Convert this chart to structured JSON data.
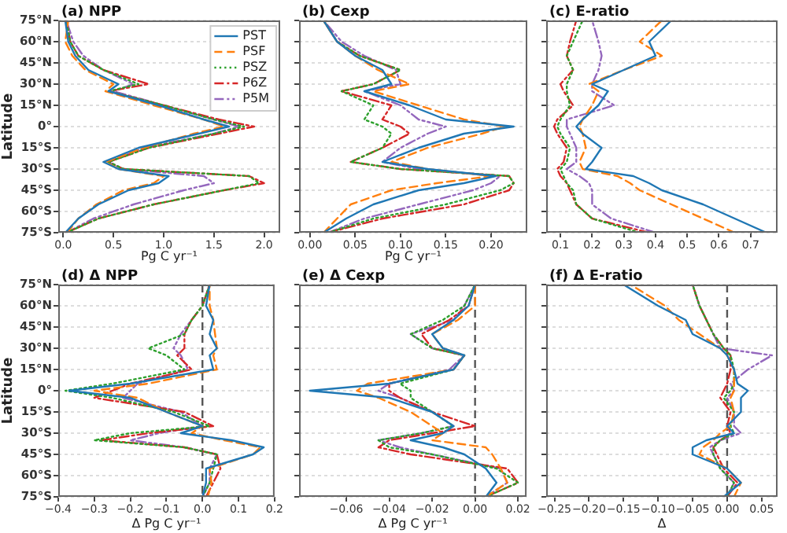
{
  "chart_data": [
    {
      "type": "line",
      "title": "(a) NPP",
      "xlabel": "Pg C yr⁻¹",
      "ylabel": "Latitude",
      "xlim": [
        -0.05,
        2.16
      ],
      "xticks": [
        {
          "value": 0,
          "label": "0.0"
        },
        {
          "value": 0.5,
          "label": "0.5"
        },
        {
          "value": 1,
          "label": "1.0"
        },
        {
          "value": 1.5,
          "label": "1.5"
        },
        {
          "value": 2,
          "label": "2.0"
        }
      ],
      "ylim": [
        -75,
        75
      ],
      "yticks": [
        {
          "value": -75,
          "label": "75°S"
        },
        {
          "value": -60,
          "label": "60°S"
        },
        {
          "value": -45,
          "label": "45°S"
        },
        {
          "value": -30,
          "label": "30°S"
        },
        {
          "value": -15,
          "label": "15°S"
        },
        {
          "value": 0,
          "label": "0°"
        },
        {
          "value": 15,
          "label": "15°N"
        },
        {
          "value": 30,
          "label": "30°N"
        },
        {
          "value": 45,
          "label": "45°N"
        },
        {
          "value": 60,
          "label": "60°N"
        },
        {
          "value": 75,
          "label": "75°N"
        }
      ],
      "grid": "y",
      "legend": "top right",
      "series": [
        {
          "name": "PST",
          "color": "#1f77b4",
          "line_style": "solid",
          "x": [
            0.02,
            0.15,
            0.35,
            0.65,
            0.95,
            1.05,
            0.55,
            0.4,
            0.75,
            1.35,
            1.65,
            1.4,
            0.95,
            0.45,
            0.55,
            0.25,
            0.12,
            0.05,
            0.02
          ],
          "values": [
            -75,
            -65,
            -55,
            -45,
            -40,
            -35,
            -30,
            -25,
            -15,
            -5,
            0,
            5,
            15,
            25,
            30,
            40,
            50,
            60,
            75
          ]
        },
        {
          "name": "PSF",
          "color": "#ff7f0e",
          "line_style": "dashed",
          "x": [
            0.04,
            0.15,
            0.33,
            0.6,
            0.9,
            1.0,
            0.55,
            0.42,
            0.8,
            1.3,
            1.6,
            1.4,
            0.9,
            0.42,
            0.5,
            0.22,
            0.09,
            0.02,
            0.05
          ],
          "values": [
            -75,
            -65,
            -55,
            -45,
            -40,
            -35,
            -30,
            -25,
            -15,
            -5,
            0,
            5,
            15,
            25,
            30,
            40,
            50,
            60,
            75
          ]
        },
        {
          "name": "PSZ",
          "color": "#2ca02c",
          "line_style": "dotted",
          "x": [
            0.03,
            0.35,
            0.9,
            1.6,
            1.95,
            1.85,
            0.6,
            0.45,
            0.85,
            1.5,
            1.8,
            1.5,
            1.0,
            0.45,
            0.75,
            0.4,
            0.15,
            0.07,
            0.03
          ],
          "values": [
            -75,
            -65,
            -55,
            -45,
            -40,
            -35,
            -30,
            -25,
            -15,
            -5,
            0,
            5,
            15,
            25,
            30,
            40,
            50,
            60,
            75
          ]
        },
        {
          "name": "P6Z",
          "color": "#d62728",
          "line_style": "dashdot",
          "x": [
            0.03,
            0.35,
            0.9,
            1.6,
            2.0,
            1.85,
            0.6,
            0.45,
            0.85,
            1.55,
            1.9,
            1.55,
            1.0,
            0.45,
            0.85,
            0.4,
            0.15,
            0.07,
            0.03
          ],
          "values": [
            -75,
            -65,
            -55,
            -45,
            -40,
            -35,
            -30,
            -25,
            -15,
            -5,
            0,
            5,
            15,
            25,
            30,
            40,
            50,
            60,
            75
          ]
        },
        {
          "name": "P5M",
          "color": "#9467bd",
          "line_style": "dashdotdot",
          "x": [
            0.03,
            0.3,
            0.7,
            1.2,
            1.5,
            1.4,
            0.6,
            0.45,
            0.8,
            1.5,
            1.75,
            1.5,
            1.0,
            0.5,
            0.7,
            0.4,
            0.2,
            0.1,
            0.03
          ],
          "values": [
            -75,
            -65,
            -55,
            -45,
            -40,
            -35,
            -30,
            -25,
            -15,
            -5,
            0,
            5,
            15,
            25,
            30,
            40,
            50,
            60,
            75
          ]
        }
      ]
    },
    {
      "type": "line",
      "title": "(b) Cexp",
      "xlabel": "Pg C yr⁻¹",
      "xlim": [
        -0.012,
        0.24
      ],
      "xticks": [
        {
          "value": 0,
          "label": "0.00"
        },
        {
          "value": 0.05,
          "label": "0.05"
        },
        {
          "value": 0.1,
          "label": "0.10"
        },
        {
          "value": 0.15,
          "label": "0.15"
        },
        {
          "value": 0.2,
          "label": "0.20"
        }
      ],
      "ylim": [
        -75,
        75
      ],
      "yticks": [
        {
          "value": -75,
          "label": null
        },
        {
          "value": -60,
          "label": null
        },
        {
          "value": -45,
          "label": null
        },
        {
          "value": -30,
          "label": null
        },
        {
          "value": -15,
          "label": null
        },
        {
          "value": 0,
          "label": null
        },
        {
          "value": 15,
          "label": null
        },
        {
          "value": 30,
          "label": null
        },
        {
          "value": 45,
          "label": null
        },
        {
          "value": 60,
          "label": null
        },
        {
          "value": 75,
          "label": null
        }
      ],
      "grid": "y",
      "tick_labels": "x",
      "series": [
        {
          "color": "#1f77b4",
          "line_style": "solid",
          "x": [
            0.015,
            0.04,
            0.07,
            0.12,
            0.17,
            0.205,
            0.13,
            0.08,
            0.12,
            0.17,
            0.225,
            0.15,
            0.11,
            0.06,
            0.09,
            0.08,
            0.05,
            0.03,
            0.015
          ],
          "values": [
            -75,
            -65,
            -55,
            -45,
            -40,
            -35,
            -30,
            -25,
            -15,
            -5,
            0,
            5,
            15,
            25,
            30,
            40,
            50,
            60,
            75
          ]
        },
        {
          "color": "#ff7f0e",
          "line_style": "dashed",
          "x": [
            0.015,
            0.03,
            0.045,
            0.09,
            0.14,
            0.2,
            0.13,
            0.09,
            0.13,
            0.19,
            0.215,
            0.17,
            0.12,
            0.07,
            0.11,
            0.075,
            0.05,
            0.03,
            0.015
          ],
          "values": [
            -75,
            -65,
            -55,
            -45,
            -40,
            -35,
            -30,
            -25,
            -15,
            -5,
            0,
            5,
            15,
            25,
            30,
            40,
            50,
            60,
            75
          ]
        },
        {
          "color": "#2ca02c",
          "line_style": "dotted",
          "x": [
            0.02,
            0.07,
            0.15,
            0.21,
            0.225,
            0.22,
            0.1,
            0.045,
            0.08,
            0.09,
            0.08,
            0.06,
            0.07,
            0.035,
            0.07,
            0.1,
            0.055,
            0.03,
            0.015
          ],
          "values": [
            -75,
            -65,
            -55,
            -45,
            -40,
            -35,
            -30,
            -25,
            -15,
            -5,
            0,
            5,
            15,
            25,
            30,
            40,
            50,
            60,
            75
          ]
        },
        {
          "color": "#d62728",
          "line_style": "dashdot",
          "x": [
            0.02,
            0.08,
            0.17,
            0.22,
            0.225,
            0.22,
            0.1,
            0.045,
            0.08,
            0.11,
            0.1,
            0.08,
            0.09,
            0.035,
            0.07,
            0.1,
            0.055,
            0.03,
            0.015
          ],
          "values": [
            -75,
            -65,
            -55,
            -45,
            -40,
            -35,
            -30,
            -25,
            -15,
            -5,
            0,
            5,
            15,
            25,
            30,
            40,
            50,
            60,
            75
          ]
        },
        {
          "color": "#9467bd",
          "line_style": "dashdotdot",
          "x": [
            0.02,
            0.06,
            0.12,
            0.18,
            0.2,
            0.21,
            0.12,
            0.08,
            0.1,
            0.13,
            0.15,
            0.12,
            0.1,
            0.06,
            0.1,
            0.095,
            0.06,
            0.035,
            0.015
          ],
          "values": [
            -75,
            -65,
            -55,
            -45,
            -40,
            -35,
            -30,
            -25,
            -15,
            -5,
            0,
            5,
            15,
            25,
            30,
            40,
            50,
            60,
            75
          ]
        }
      ]
    },
    {
      "type": "line",
      "title": "(c) E-ratio",
      "xlim": [
        0.055,
        0.785
      ],
      "xticks": [
        0.1,
        0.2,
        0.3,
        0.4,
        0.5,
        0.6,
        0.7
      ],
      "ylim": [
        -75,
        75
      ],
      "yticks": [
        {
          "value": -75,
          "label": null
        },
        {
          "value": -60,
          "label": null
        },
        {
          "value": -45,
          "label": null
        },
        {
          "value": -30,
          "label": null
        },
        {
          "value": -15,
          "label": null
        },
        {
          "value": 0,
          "label": null
        },
        {
          "value": 15,
          "label": null
        },
        {
          "value": 30,
          "label": null
        },
        {
          "value": 45,
          "label": null
        },
        {
          "value": 60,
          "label": null
        },
        {
          "value": 75,
          "label": null
        }
      ],
      "grid": "y",
      "tick_labels": "x",
      "series": [
        {
          "color": "#1f77b4",
          "line_style": "solid",
          "x": [
            0.75,
            0.65,
            0.55,
            0.42,
            0.38,
            0.33,
            0.18,
            0.2,
            0.23,
            0.17,
            0.15,
            0.17,
            0.22,
            0.25,
            0.2,
            0.3,
            0.4,
            0.38,
            0.45
          ],
          "values": [
            -75,
            -65,
            -55,
            -45,
            -40,
            -35,
            -30,
            -25,
            -15,
            -5,
            0,
            5,
            15,
            25,
            30,
            40,
            50,
            60,
            75
          ]
        },
        {
          "color": "#ff7f0e",
          "line_style": "dashed",
          "x": [
            0.65,
            0.55,
            0.45,
            0.35,
            0.32,
            0.28,
            0.17,
            0.16,
            0.18,
            0.17,
            0.16,
            0.17,
            0.2,
            0.22,
            0.19,
            0.3,
            0.42,
            0.35,
            0.42
          ],
          "values": [
            -75,
            -65,
            -55,
            -45,
            -40,
            -35,
            -30,
            -25,
            -15,
            -5,
            0,
            5,
            15,
            25,
            30,
            40,
            50,
            60,
            75
          ]
        },
        {
          "color": "#2ca02c",
          "line_style": "dotted",
          "x": [
            0.35,
            0.2,
            0.15,
            0.14,
            0.12,
            0.11,
            0.1,
            0.12,
            0.13,
            0.1,
            0.09,
            0.1,
            0.13,
            0.12,
            0.12,
            0.14,
            0.12,
            0.14,
            0.17
          ],
          "values": [
            -75,
            -65,
            -55,
            -45,
            -40,
            -35,
            -30,
            -25,
            -15,
            -5,
            0,
            5,
            15,
            25,
            30,
            40,
            50,
            60,
            75
          ]
        },
        {
          "color": "#d62728",
          "line_style": "dashdot",
          "x": [
            0.38,
            0.2,
            0.15,
            0.13,
            0.12,
            0.1,
            0.09,
            0.11,
            0.12,
            0.09,
            0.08,
            0.09,
            0.14,
            0.11,
            0.1,
            0.14,
            0.12,
            0.13,
            0.15
          ],
          "values": [
            -75,
            -65,
            -55,
            -45,
            -40,
            -35,
            -30,
            -25,
            -15,
            -5,
            0,
            5,
            15,
            25,
            30,
            40,
            50,
            60,
            75
          ]
        },
        {
          "color": "#9467bd",
          "line_style": "dashdotdot",
          "x": [
            0.4,
            0.26,
            0.2,
            0.2,
            0.19,
            0.16,
            0.12,
            0.15,
            0.15,
            0.13,
            0.12,
            0.12,
            0.27,
            0.2,
            0.2,
            0.22,
            0.23,
            0.22,
            0.2
          ],
          "values": [
            -75,
            -65,
            -55,
            -45,
            -40,
            -35,
            -30,
            -25,
            -15,
            -5,
            0,
            5,
            15,
            25,
            30,
            40,
            50,
            60,
            75
          ]
        }
      ]
    },
    {
      "type": "line",
      "title": "(d) Δ NPP",
      "xlabel": "Δ Pg C yr⁻¹",
      "ylabel": "Latitude",
      "xlim": [
        -0.4,
        0.2
      ],
      "xticks": [
        {
          "value": -0.4,
          "label": "−0.4"
        },
        {
          "value": -0.3,
          "label": "−0.3"
        },
        {
          "value": -0.2,
          "label": "−0.2"
        },
        {
          "value": -0.1,
          "label": "−0.1"
        },
        {
          "value": 0,
          "label": "0.0"
        },
        {
          "value": 0.1,
          "label": "0.1"
        },
        {
          "value": 0.2,
          "label": "0.2"
        }
      ],
      "ylim": [
        -75,
        75
      ],
      "yticks": [
        {
          "value": -75,
          "label": "75°S"
        },
        {
          "value": -60,
          "label": "60°S"
        },
        {
          "value": -45,
          "label": "45°S"
        },
        {
          "value": -30,
          "label": "30°S"
        },
        {
          "value": -15,
          "label": "15°S"
        },
        {
          "value": 0,
          "label": "0°"
        },
        {
          "value": 15,
          "label": "15°N"
        },
        {
          "value": 30,
          "label": "30°N"
        },
        {
          "value": 45,
          "label": "45°N"
        },
        {
          "value": 60,
          "label": "60°N"
        },
        {
          "value": 75,
          "label": "75°N"
        }
      ],
      "grid": "y",
      "ref_lines": [
        {
          "axis": "x",
          "value": 0,
          "color": "#555555",
          "line_style": "dashed"
        }
      ],
      "series": [
        {
          "color": "#1f77b4",
          "line_style": "solid",
          "x": [
            0.0,
            0.01,
            0.01,
            0.14,
            0.17,
            0.08,
            -0.06,
            0.0,
            -0.1,
            -0.2,
            -0.37,
            -0.2,
            0.03,
            0.02,
            0.04,
            0.02,
            0.03,
            0.01,
            0.02
          ],
          "values": [
            -75,
            -65,
            -55,
            -45,
            -40,
            -35,
            -30,
            -25,
            -15,
            -5,
            0,
            5,
            15,
            25,
            30,
            40,
            50,
            60,
            75
          ]
        },
        {
          "color": "#ff7f0e",
          "line_style": "dashed",
          "x": [
            0.015,
            0.025,
            0.02,
            0.14,
            0.16,
            0.06,
            -0.03,
            0.0,
            -0.1,
            -0.18,
            -0.3,
            -0.15,
            0.04,
            0.03,
            0.04,
            0.035,
            0.03,
            0.02,
            0.02
          ],
          "values": [
            -75,
            -65,
            -55,
            -45,
            -40,
            -35,
            -30,
            -25,
            -15,
            -5,
            0,
            5,
            15,
            25,
            30,
            40,
            50,
            60,
            75
          ]
        },
        {
          "color": "#2ca02c",
          "line_style": "dotted",
          "x": [
            0.0,
            0.02,
            0.03,
            0.04,
            -0.05,
            -0.3,
            -0.2,
            0.02,
            -0.08,
            -0.25,
            -0.38,
            -0.25,
            -0.05,
            -0.1,
            -0.15,
            -0.05,
            -0.03,
            0.0,
            0.02
          ],
          "values": [
            -75,
            -65,
            -55,
            -45,
            -40,
            -35,
            -30,
            -25,
            -15,
            -5,
            0,
            5,
            15,
            25,
            30,
            40,
            50,
            60,
            75
          ]
        },
        {
          "color": "#d62728",
          "line_style": "dashdot",
          "x": [
            0.01,
            0.03,
            0.05,
            0.04,
            -0.05,
            -0.28,
            -0.15,
            0.03,
            -0.05,
            -0.3,
            -0.25,
            -0.2,
            -0.03,
            -0.07,
            -0.05,
            -0.05,
            -0.03,
            0.0,
            0.02
          ],
          "values": [
            -75,
            -65,
            -55,
            -45,
            -40,
            -35,
            -30,
            -25,
            -15,
            -5,
            0,
            5,
            15,
            25,
            30,
            40,
            50,
            60,
            75
          ]
        },
        {
          "color": "#9467bd",
          "line_style": "dashdotdot",
          "x": [
            0.0,
            0.02,
            0.02,
            0.04,
            -0.05,
            -0.2,
            -0.12,
            0.0,
            -0.06,
            -0.22,
            -0.2,
            -0.18,
            -0.04,
            -0.06,
            -0.08,
            -0.06,
            -0.03,
            0.0,
            0.02
          ],
          "values": [
            -75,
            -65,
            -55,
            -45,
            -40,
            -35,
            -30,
            -25,
            -15,
            -5,
            0,
            5,
            15,
            25,
            30,
            40,
            50,
            60,
            75
          ]
        }
      ]
    },
    {
      "type": "line",
      "title": "(e) Δ Cexp",
      "xlabel": "Δ Pg C yr⁻¹",
      "xlim": [
        -0.082,
        0.024
      ],
      "xticks": [
        {
          "value": -0.06,
          "label": "−0.06"
        },
        {
          "value": -0.04,
          "label": "−0.04"
        },
        {
          "value": -0.02,
          "label": "−0.02"
        },
        {
          "value": 0,
          "label": "0.00"
        },
        {
          "value": 0.02,
          "label": "0.02"
        }
      ],
      "ylim": [
        -75,
        75
      ],
      "yticks": [
        {
          "value": -75,
          "label": null
        },
        {
          "value": -60,
          "label": null
        },
        {
          "value": -45,
          "label": null
        },
        {
          "value": -30,
          "label": null
        },
        {
          "value": -15,
          "label": null
        },
        {
          "value": 0,
          "label": null
        },
        {
          "value": 15,
          "label": null
        },
        {
          "value": 30,
          "label": null
        },
        {
          "value": 45,
          "label": null
        },
        {
          "value": 60,
          "label": null
        },
        {
          "value": 75,
          "label": null
        }
      ],
      "grid": "y",
      "tick_labels": "x",
      "ref_lines": [
        {
          "axis": "x",
          "value": 0,
          "color": "#555555",
          "line_style": "dashed"
        }
      ],
      "series": [
        {
          "color": "#1f77b4",
          "line_style": "solid",
          "x": [
            0.005,
            0.01,
            0.005,
            -0.005,
            -0.015,
            -0.03,
            -0.015,
            -0.01,
            -0.02,
            -0.04,
            -0.077,
            -0.04,
            -0.01,
            -0.005,
            -0.015,
            -0.02,
            -0.01,
            -0.003,
            0.0
          ],
          "values": [
            -75,
            -65,
            -55,
            -45,
            -40,
            -35,
            -30,
            -25,
            -15,
            -5,
            0,
            5,
            15,
            25,
            30,
            40,
            50,
            60,
            75
          ]
        },
        {
          "color": "#ff7f0e",
          "line_style": "dashed",
          "x": [
            0.005,
            0.015,
            0.012,
            0.008,
            0.005,
            -0.02,
            -0.015,
            -0.02,
            -0.03,
            -0.045,
            -0.055,
            -0.05,
            -0.01,
            -0.005,
            -0.015,
            -0.02,
            -0.008,
            0.0,
            0.0
          ],
          "values": [
            -75,
            -65,
            -55,
            -45,
            -40,
            -35,
            -30,
            -25,
            -15,
            -5,
            0,
            5,
            15,
            25,
            30,
            40,
            50,
            60,
            75
          ]
        },
        {
          "color": "#2ca02c",
          "line_style": "dotted",
          "x": [
            0.005,
            0.02,
            0.01,
            -0.02,
            -0.04,
            -0.045,
            -0.025,
            -0.01,
            -0.02,
            -0.03,
            -0.03,
            -0.035,
            -0.01,
            -0.005,
            -0.02,
            -0.03,
            -0.015,
            -0.005,
            0.0
          ],
          "values": [
            -75,
            -65,
            -55,
            -45,
            -40,
            -35,
            -30,
            -25,
            -15,
            -5,
            0,
            5,
            15,
            25,
            30,
            40,
            50,
            60,
            75
          ]
        },
        {
          "color": "#d62728",
          "line_style": "dashdot",
          "x": [
            0.005,
            0.02,
            0.015,
            -0.03,
            -0.045,
            -0.04,
            -0.02,
            0.0,
            -0.02,
            -0.035,
            -0.04,
            -0.04,
            -0.01,
            -0.005,
            -0.02,
            -0.025,
            -0.012,
            -0.003,
            0.0
          ],
          "values": [
            -75,
            -65,
            -55,
            -45,
            -40,
            -35,
            -30,
            -25,
            -15,
            -5,
            0,
            5,
            15,
            25,
            30,
            40,
            50,
            60,
            75
          ]
        },
        {
          "color": "#9467bd",
          "line_style": "dashdotdot",
          "x": [
            0.005,
            0.015,
            0.012,
            -0.02,
            -0.035,
            -0.045,
            -0.025,
            -0.01,
            -0.02,
            -0.035,
            -0.045,
            -0.04,
            -0.012,
            -0.005,
            -0.02,
            -0.03,
            -0.01,
            -0.005,
            0.0
          ],
          "values": [
            -75,
            -65,
            -55,
            -45,
            -40,
            -35,
            -30,
            -25,
            -15,
            -5,
            0,
            5,
            15,
            25,
            30,
            40,
            50,
            60,
            75
          ]
        }
      ]
    },
    {
      "type": "line",
      "title": "(f) Δ E-ratio",
      "xlabel": "Δ",
      "xlim": [
        -0.262,
        0.073
      ],
      "xticks": [
        {
          "value": -0.25,
          "label": "−0.25"
        },
        {
          "value": -0.2,
          "label": "−0.20"
        },
        {
          "value": -0.15,
          "label": "−0.15"
        },
        {
          "value": -0.1,
          "label": "−0.10"
        },
        {
          "value": -0.05,
          "label": "−0.05"
        },
        {
          "value": 0,
          "label": "0.00"
        },
        {
          "value": 0.05,
          "label": "0.05"
        }
      ],
      "ylim": [
        -75,
        75
      ],
      "yticks": [
        {
          "value": -75,
          "label": null
        },
        {
          "value": -60,
          "label": null
        },
        {
          "value": -45,
          "label": null
        },
        {
          "value": -30,
          "label": null
        },
        {
          "value": -15,
          "label": null
        },
        {
          "value": 0,
          "label": null
        },
        {
          "value": 15,
          "label": null
        },
        {
          "value": 30,
          "label": null
        },
        {
          "value": 45,
          "label": null
        },
        {
          "value": 60,
          "label": null
        },
        {
          "value": 75,
          "label": null
        }
      ],
      "grid": "y",
      "tick_labels": "x",
      "ref_lines": [
        {
          "axis": "x",
          "value": 0,
          "color": "#555555",
          "line_style": "dashed"
        }
      ],
      "series": [
        {
          "color": "#1f77b4",
          "line_style": "solid",
          "x": [
            -0.005,
            0.02,
            0.0,
            -0.05,
            -0.05,
            -0.03,
            0.01,
            0.0,
            0.02,
            0.02,
            0.03,
            0.015,
            0.01,
            0.0,
            -0.01,
            -0.05,
            -0.06,
            -0.1,
            -0.15
          ],
          "values": [
            -75,
            -65,
            -55,
            -45,
            -40,
            -35,
            -30,
            -25,
            -15,
            -5,
            0,
            5,
            15,
            25,
            30,
            40,
            50,
            60,
            75
          ]
        },
        {
          "color": "#ff7f0e",
          "line_style": "dashed",
          "x": [
            0.01,
            0.02,
            0.0,
            -0.04,
            -0.035,
            -0.02,
            -0.01,
            0.005,
            0.01,
            0.005,
            0.01,
            0.01,
            0.01,
            0.0,
            -0.01,
            -0.04,
            -0.07,
            -0.09,
            -0.14
          ],
          "values": [
            -75,
            -65,
            -55,
            -45,
            -40,
            -35,
            -30,
            -25,
            -15,
            -5,
            0,
            5,
            15,
            25,
            30,
            40,
            50,
            60,
            75
          ]
        },
        {
          "color": "#2ca02c",
          "line_style": "dotted",
          "x": [
            0.0,
            0.01,
            -0.01,
            -0.02,
            -0.02,
            -0.01,
            0.01,
            0.005,
            0.01,
            -0.005,
            0.005,
            0.01,
            0.01,
            0.005,
            -0.005,
            -0.02,
            -0.03,
            -0.04,
            -0.05
          ],
          "values": [
            -75,
            -65,
            -55,
            -45,
            -40,
            -35,
            -30,
            -25,
            -15,
            -5,
            0,
            5,
            15,
            25,
            30,
            40,
            50,
            60,
            75
          ]
        },
        {
          "color": "#d62728",
          "line_style": "dashdot",
          "x": [
            0.0,
            0.015,
            -0.005,
            -0.015,
            -0.02,
            -0.01,
            0.005,
            0.0,
            0.005,
            -0.01,
            -0.005,
            0.0,
            0.005,
            0.005,
            -0.005,
            -0.02,
            -0.03,
            -0.04,
            -0.05
          ],
          "values": [
            -75,
            -65,
            -55,
            -45,
            -40,
            -35,
            -30,
            -25,
            -15,
            -5,
            0,
            5,
            15,
            25,
            30,
            40,
            50,
            60,
            75
          ]
        },
        {
          "color": "#9467bd",
          "line_style": "dashdotdot",
          "x": [
            0.0,
            0.01,
            -0.01,
            -0.02,
            -0.025,
            -0.01,
            0.02,
            0.01,
            0.01,
            0.0,
            0.01,
            0.005,
            0.03,
            0.065,
            -0.01,
            -0.02,
            -0.03,
            -0.04,
            -0.05
          ],
          "values": [
            -75,
            -65,
            -55,
            -45,
            -40,
            -35,
            -30,
            -25,
            -15,
            -5,
            0,
            5,
            15,
            25,
            30,
            40,
            50,
            60,
            75
          ]
        }
      ]
    }
  ]
}
